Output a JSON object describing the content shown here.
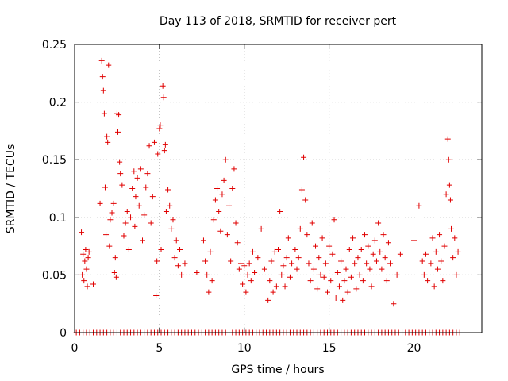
{
  "chart_data": {
    "type": "scatter",
    "title": "Day 113 of 2018, SRMTID for receiver pert",
    "xlabel": "GPS time / hours",
    "ylabel": "SRMTID / TECUs",
    "xlim": [
      0,
      24
    ],
    "ylim": [
      0,
      0.25
    ],
    "grid": true,
    "marker": "+",
    "color": "#e00000",
    "xticks": [
      0,
      5,
      10,
      15,
      20
    ],
    "xtick_labels": [
      "0",
      "5",
      "10",
      "15",
      "20"
    ],
    "yticks": [
      0,
      0.05,
      0.1,
      0.15,
      0.2,
      0.25
    ],
    "ytick_labels": [
      "0",
      "0.05",
      "0.1",
      "0.15",
      "0.2",
      "0.25"
    ],
    "series": [
      {
        "name": "SRMTID",
        "points": [
          [
            0.4,
            0.087
          ],
          [
            0.45,
            0.05
          ],
          [
            0.5,
            0.068
          ],
          [
            0.55,
            0.045
          ],
          [
            0.6,
            0.062
          ],
          [
            0.65,
            0.072
          ],
          [
            0.7,
            0.055
          ],
          [
            0.75,
            0.04
          ],
          [
            0.8,
            0.065
          ],
          [
            0.85,
            0.07
          ],
          [
            1.1,
            0.042
          ],
          [
            1.5,
            0.112
          ],
          [
            1.6,
            0.236
          ],
          [
            1.65,
            0.222
          ],
          [
            1.7,
            0.21
          ],
          [
            1.75,
            0.19
          ],
          [
            1.8,
            0.126
          ],
          [
            1.85,
            0.085
          ],
          [
            1.9,
            0.17
          ],
          [
            1.95,
            0.165
          ],
          [
            2.0,
            0.232
          ],
          [
            2.05,
            0.075
          ],
          [
            2.1,
            0.098
          ],
          [
            2.2,
            0.104
          ],
          [
            2.3,
            0.112
          ],
          [
            2.35,
            0.052
          ],
          [
            2.4,
            0.065
          ],
          [
            2.45,
            0.048
          ],
          [
            2.5,
            0.19
          ],
          [
            2.55,
            0.174
          ],
          [
            2.6,
            0.189
          ],
          [
            2.65,
            0.148
          ],
          [
            2.7,
            0.138
          ],
          [
            2.8,
            0.128
          ],
          [
            2.9,
            0.084
          ],
          [
            3.0,
            0.095
          ],
          [
            3.1,
            0.105
          ],
          [
            3.2,
            0.072
          ],
          [
            3.3,
            0.1
          ],
          [
            3.4,
            0.125
          ],
          [
            3.5,
            0.14
          ],
          [
            3.55,
            0.092
          ],
          [
            3.6,
            0.118
          ],
          [
            3.7,
            0.134
          ],
          [
            3.8,
            0.11
          ],
          [
            3.9,
            0.142
          ],
          [
            4.0,
            0.08
          ],
          [
            4.1,
            0.102
          ],
          [
            4.2,
            0.126
          ],
          [
            4.3,
            0.138
          ],
          [
            4.4,
            0.162
          ],
          [
            4.5,
            0.095
          ],
          [
            4.6,
            0.118
          ],
          [
            4.7,
            0.165
          ],
          [
            4.8,
            0.032
          ],
          [
            4.85,
            0.062
          ],
          [
            4.9,
            0.155
          ],
          [
            5.0,
            0.177
          ],
          [
            5.05,
            0.18
          ],
          [
            5.1,
            0.072
          ],
          [
            5.2,
            0.214
          ],
          [
            5.25,
            0.204
          ],
          [
            5.3,
            0.158
          ],
          [
            5.35,
            0.163
          ],
          [
            5.4,
            0.105
          ],
          [
            5.5,
            0.124
          ],
          [
            5.6,
            0.11
          ],
          [
            5.7,
            0.09
          ],
          [
            5.8,
            0.098
          ],
          [
            5.9,
            0.065
          ],
          [
            6.0,
            0.08
          ],
          [
            6.1,
            0.058
          ],
          [
            6.2,
            0.072
          ],
          [
            6.3,
            0.05
          ],
          [
            6.5,
            0.06
          ],
          [
            7.2,
            0.052
          ],
          [
            7.6,
            0.08
          ],
          [
            7.7,
            0.062
          ],
          [
            7.8,
            0.05
          ],
          [
            7.9,
            0.035
          ],
          [
            8.0,
            0.07
          ],
          [
            8.1,
            0.045
          ],
          [
            8.2,
            0.098
          ],
          [
            8.3,
            0.115
          ],
          [
            8.4,
            0.125
          ],
          [
            8.5,
            0.105
          ],
          [
            8.6,
            0.088
          ],
          [
            8.7,
            0.12
          ],
          [
            8.8,
            0.132
          ],
          [
            8.9,
            0.15
          ],
          [
            9.0,
            0.085
          ],
          [
            9.1,
            0.11
          ],
          [
            9.2,
            0.062
          ],
          [
            9.3,
            0.125
          ],
          [
            9.4,
            0.142
          ],
          [
            9.5,
            0.095
          ],
          [
            9.6,
            0.078
          ],
          [
            9.7,
            0.055
          ],
          [
            9.8,
            0.06
          ],
          [
            9.9,
            0.042
          ],
          [
            10.0,
            0.058
          ],
          [
            10.1,
            0.035
          ],
          [
            10.2,
            0.05
          ],
          [
            10.3,
            0.06
          ],
          [
            10.4,
            0.045
          ],
          [
            10.5,
            0.07
          ],
          [
            10.6,
            0.052
          ],
          [
            10.8,
            0.065
          ],
          [
            11.0,
            0.09
          ],
          [
            11.2,
            0.055
          ],
          [
            11.4,
            0.028
          ],
          [
            11.5,
            0.045
          ],
          [
            11.6,
            0.062
          ],
          [
            11.7,
            0.035
          ],
          [
            11.8,
            0.07
          ],
          [
            11.9,
            0.04
          ],
          [
            12.0,
            0.072
          ],
          [
            12.1,
            0.105
          ],
          [
            12.2,
            0.05
          ],
          [
            12.3,
            0.058
          ],
          [
            12.4,
            0.04
          ],
          [
            12.5,
            0.065
          ],
          [
            12.6,
            0.082
          ],
          [
            12.7,
            0.048
          ],
          [
            12.8,
            0.06
          ],
          [
            13.0,
            0.072
          ],
          [
            13.1,
            0.055
          ],
          [
            13.2,
            0.065
          ],
          [
            13.3,
            0.09
          ],
          [
            13.4,
            0.124
          ],
          [
            13.5,
            0.152
          ],
          [
            13.6,
            0.115
          ],
          [
            13.7,
            0.085
          ],
          [
            13.8,
            0.06
          ],
          [
            13.9,
            0.045
          ],
          [
            14.0,
            0.095
          ],
          [
            14.1,
            0.055
          ],
          [
            14.2,
            0.075
          ],
          [
            14.3,
            0.038
          ],
          [
            14.4,
            0.065
          ],
          [
            14.5,
            0.05
          ],
          [
            14.6,
            0.082
          ],
          [
            14.7,
            0.048
          ],
          [
            14.8,
            0.06
          ],
          [
            14.9,
            0.035
          ],
          [
            15.0,
            0.075
          ],
          [
            15.1,
            0.045
          ],
          [
            15.2,
            0.068
          ],
          [
            15.3,
            0.098
          ],
          [
            15.4,
            0.03
          ],
          [
            15.5,
            0.052
          ],
          [
            15.6,
            0.04
          ],
          [
            15.7,
            0.062
          ],
          [
            15.8,
            0.028
          ],
          [
            15.9,
            0.045
          ],
          [
            16.0,
            0.055
          ],
          [
            16.1,
            0.035
          ],
          [
            16.2,
            0.072
          ],
          [
            16.3,
            0.048
          ],
          [
            16.4,
            0.082
          ],
          [
            16.5,
            0.06
          ],
          [
            16.6,
            0.038
          ],
          [
            16.7,
            0.065
          ],
          [
            16.8,
            0.05
          ],
          [
            16.9,
            0.072
          ],
          [
            17.0,
            0.045
          ],
          [
            17.1,
            0.085
          ],
          [
            17.2,
            0.06
          ],
          [
            17.3,
            0.075
          ],
          [
            17.4,
            0.055
          ],
          [
            17.5,
            0.04
          ],
          [
            17.6,
            0.068
          ],
          [
            17.7,
            0.08
          ],
          [
            17.8,
            0.062
          ],
          [
            17.9,
            0.095
          ],
          [
            18.0,
            0.07
          ],
          [
            18.1,
            0.055
          ],
          [
            18.2,
            0.085
          ],
          [
            18.3,
            0.065
          ],
          [
            18.4,
            0.045
          ],
          [
            18.5,
            0.078
          ],
          [
            18.6,
            0.06
          ],
          [
            18.8,
            0.025
          ],
          [
            19.0,
            0.05
          ],
          [
            19.2,
            0.068
          ],
          [
            20.0,
            0.08
          ],
          [
            20.3,
            0.11
          ],
          [
            20.5,
            0.062
          ],
          [
            20.6,
            0.05
          ],
          [
            20.7,
            0.068
          ],
          [
            20.8,
            0.045
          ],
          [
            21.0,
            0.06
          ],
          [
            21.1,
            0.082
          ],
          [
            21.2,
            0.04
          ],
          [
            21.3,
            0.07
          ],
          [
            21.4,
            0.055
          ],
          [
            21.5,
            0.085
          ],
          [
            21.6,
            0.062
          ],
          [
            21.7,
            0.045
          ],
          [
            21.8,
            0.075
          ],
          [
            21.9,
            0.12
          ],
          [
            22.0,
            0.168
          ],
          [
            22.05,
            0.15
          ],
          [
            22.1,
            0.128
          ],
          [
            22.15,
            0.115
          ],
          [
            22.2,
            0.09
          ],
          [
            22.3,
            0.065
          ],
          [
            22.4,
            0.082
          ],
          [
            22.5,
            0.05
          ],
          [
            22.6,
            0.07
          ]
        ],
        "zero_points_x": [
          0.1,
          0.3,
          0.5,
          0.7,
          0.9,
          1.1,
          1.3,
          1.5,
          1.7,
          1.9,
          2.1,
          2.3,
          2.5,
          2.7,
          2.9,
          3.1,
          3.3,
          3.5,
          3.7,
          3.9,
          4.1,
          4.3,
          4.5,
          4.7,
          4.9,
          5.1,
          5.3,
          5.5,
          5.7,
          5.9,
          6.1,
          6.3,
          6.5,
          6.7,
          6.9,
          7.1,
          7.3,
          7.5,
          7.7,
          7.9,
          8.1,
          8.3,
          8.5,
          8.7,
          8.9,
          9.1,
          9.3,
          9.5,
          9.7,
          9.9,
          10.1,
          10.3,
          10.5,
          10.7,
          10.9,
          11.1,
          11.3,
          11.5,
          11.7,
          11.9,
          12.1,
          12.3,
          12.5,
          12.7,
          12.9,
          13.1,
          13.3,
          13.5,
          13.7,
          13.9,
          14.1,
          14.3,
          14.5,
          14.7,
          14.9,
          15.1,
          15.3,
          15.5,
          15.7,
          15.9,
          16.1,
          16.3,
          16.5,
          16.7,
          16.9,
          17.1,
          17.3,
          17.5,
          17.7,
          17.9,
          18.1,
          18.3,
          18.5,
          18.7,
          18.9,
          19.1,
          19.3,
          19.5,
          19.7,
          19.9,
          20.1,
          20.3,
          20.5,
          20.7,
          20.9,
          21.1,
          21.3,
          21.5,
          21.7,
          21.9,
          22.1,
          22.3,
          22.5,
          22.7
        ]
      }
    ]
  }
}
